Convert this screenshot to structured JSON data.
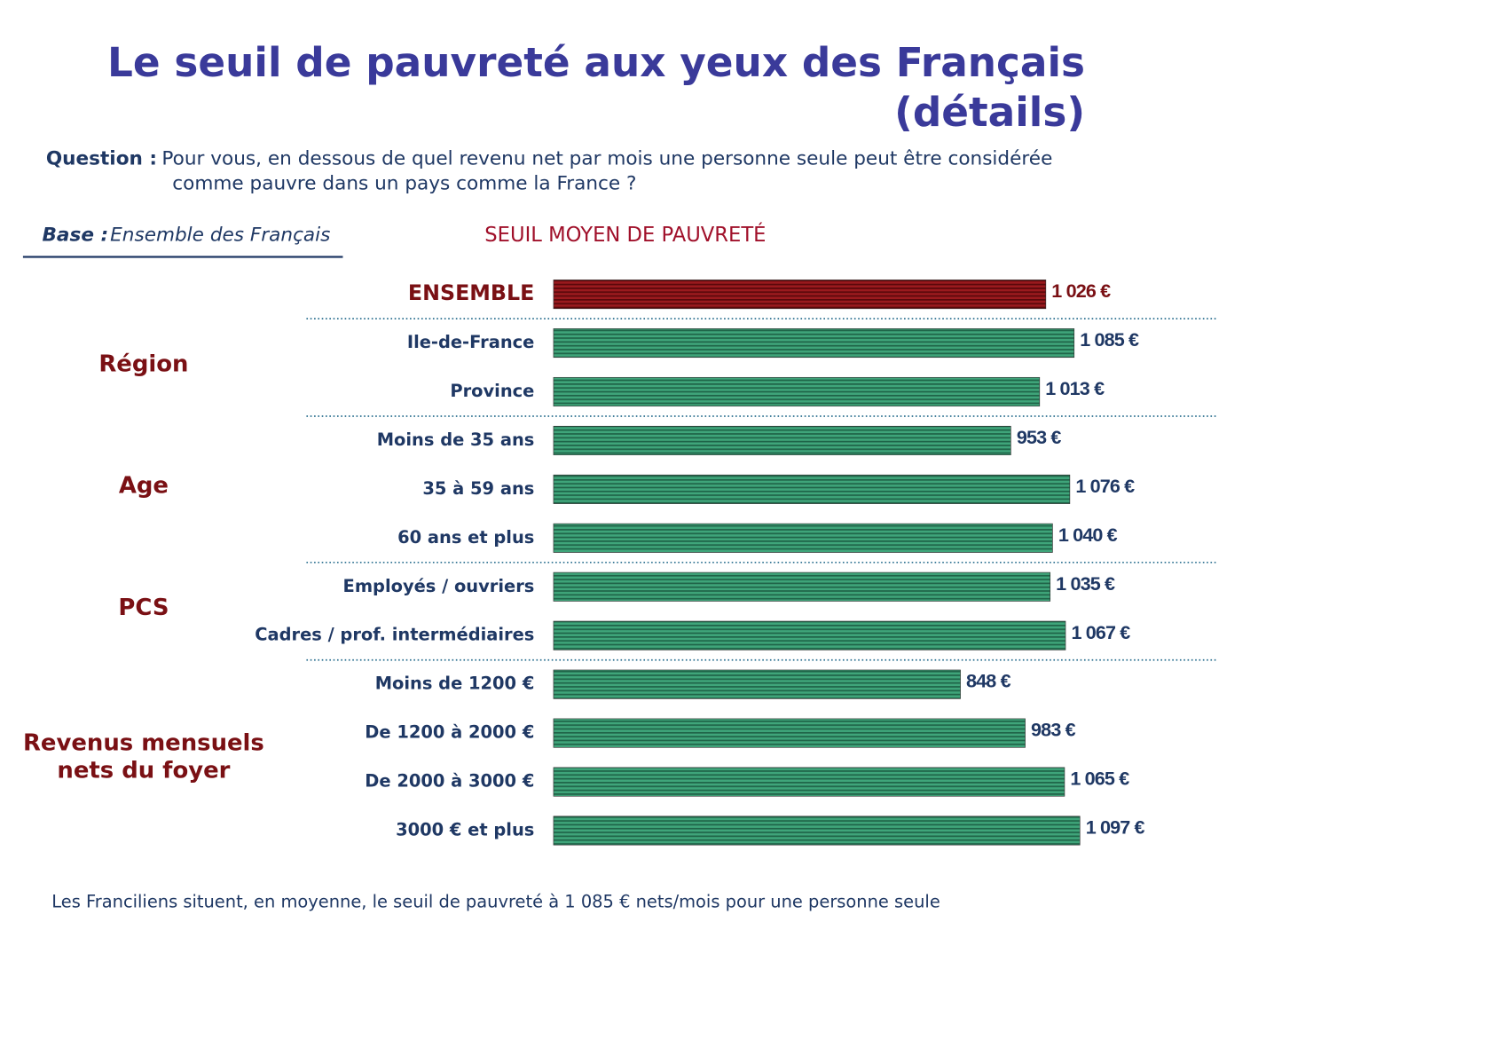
{
  "chart_data": {
    "type": "bar",
    "orientation": "horizontal",
    "title": [
      "Le seuil de pauvreté aux yeux des Français",
      "(détails)"
    ],
    "question_label": "Question  :",
    "question": [
      "Pour vous, en dessous de quel revenu net par mois une personne seule peut être considérée",
      "comme pauvre dans un pays comme la France ?"
    ],
    "base_label": "Base :",
    "base": "Ensemble des Français",
    "subtitle": "SEUIL MOYEN DE PAUVRETÉ",
    "total": {
      "category": "ENSEMBLE",
      "value": 1026,
      "value_label": "1 026 €",
      "color": "#7a1014"
    },
    "color": "#2e8a60",
    "groups": [
      {
        "name": [
          "Région"
        ],
        "categories": [
          "Ile-de-France",
          "Province"
        ],
        "values": [
          1085,
          1013
        ],
        "value_labels": [
          "1 085 €",
          "1 013 €"
        ]
      },
      {
        "name": [
          "Age"
        ],
        "categories": [
          "Moins de 35 ans",
          "35 à 59 ans",
          "60 ans et plus"
        ],
        "values": [
          953,
          1076,
          1040
        ],
        "value_labels": [
          "953 €",
          "1 076 €",
          "1 040 €"
        ]
      },
      {
        "name": [
          "PCS"
        ],
        "categories": [
          "Employés / ouvriers",
          "Cadres / prof. intermédiaires"
        ],
        "values": [
          1035,
          1067
        ],
        "value_labels": [
          "1 035 €",
          "1 067 €"
        ]
      },
      {
        "name": [
          "Revenus mensuels",
          "nets du foyer"
        ],
        "categories": [
          "Moins de 1200 €",
          "De 1200 à 2000 €",
          "De 2000 à 3000 €",
          "3000 € et plus"
        ],
        "values": [
          848,
          983,
          1065,
          1097
        ],
        "value_labels": [
          "848 €",
          "983 €",
          "1 065 €",
          "1 097 €"
        ]
      }
    ],
    "note": "Les Franciliens situent, en moyenne, le seuil de pauvreté à 1 085 € nets/mois pour une personne seule"
  }
}
